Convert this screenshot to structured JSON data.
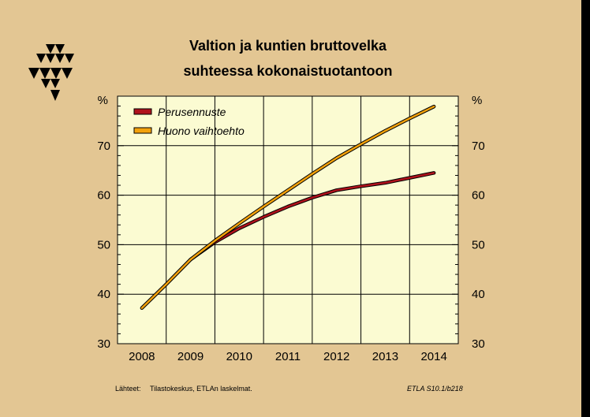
{
  "title": {
    "line1": "Valtion ja kuntien bruttovelka",
    "line2": "suhteessa kokonaistuotantoon"
  },
  "footer": {
    "source_label": "Lähteet:",
    "source_text": "Tilastokeskus, ETLAn laskelmat.",
    "code": "ETLA S10.1/b218"
  },
  "colors": {
    "background": "#e3c693",
    "plot_area": "#fbfbd2",
    "perusennuste": "#b0121c",
    "huono": "#f3a10b"
  },
  "chart_data": {
    "type": "line",
    "title": "Valtion ja kuntien bruttovelka suhteessa kokonaistuotantoon",
    "xlabel": "",
    "ylabel_left": "%",
    "ylabel_right": "%",
    "categories": [
      "2008",
      "2009",
      "2010",
      "2011",
      "2012",
      "2013",
      "2014"
    ],
    "yticks": [
      "30",
      "40",
      "50",
      "60",
      "70"
    ],
    "ylim": [
      30,
      80
    ],
    "grid": true,
    "legend_position": "top-left",
    "series": [
      {
        "name": "Perusennuste",
        "color": "#b0121c",
        "x": [
          2009,
          2009.5,
          2010,
          2010.5,
          2011,
          2011.5,
          2012,
          2012.5,
          2013,
          2013.5,
          2014
        ],
        "values": [
          47.0,
          50.5,
          53.3,
          55.6,
          57.7,
          59.5,
          61.0,
          61.8,
          62.5,
          63.5,
          64.5
        ]
      },
      {
        "name": "Huono vaihtoehto",
        "color": "#f3a10b",
        "x": [
          2008,
          2008.5,
          2009,
          2009.5,
          2010,
          2010.5,
          2011,
          2011.5,
          2012,
          2012.5,
          2013,
          2013.5,
          2014
        ],
        "values": [
          37.2,
          42.0,
          47.0,
          50.8,
          54.3,
          57.7,
          61.0,
          64.3,
          67.5,
          70.3,
          73.0,
          75.5,
          77.9
        ]
      }
    ]
  }
}
